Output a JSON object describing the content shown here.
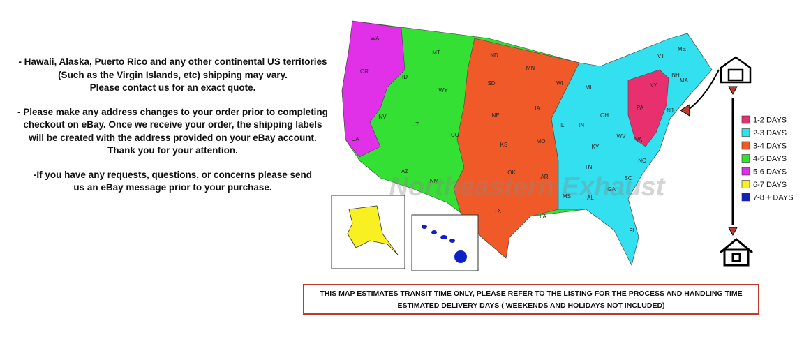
{
  "notes": [
    [
      "- Hawaii, Alaska, Puerto Rico and any other continental US territories",
      "(Such as the Virgin Islands, etc) shipping may vary.",
      "Please contact us for an exact quote."
    ],
    [
      "- Please make any address changes to your order prior to completing",
      "checkout on eBay. Once we receive your order, the shipping labels",
      "will be created with the address provided on your eBay account.",
      "Thank you for your attention."
    ],
    [
      "-If you have any requests, questions, or concerns please send",
      "us an eBay message prior to your purchase."
    ]
  ],
  "map": {
    "watermark": "Northeastern Exhaust",
    "states": [
      "WA",
      "OR",
      "CA",
      "MT",
      "ID",
      "WY",
      "NV",
      "UT",
      "CO",
      "AZ",
      "NM",
      "ND",
      "SD",
      "NE",
      "KS",
      "OK",
      "TX",
      "MN",
      "IA",
      "MO",
      "AR",
      "LA",
      "WI",
      "IL",
      "MI",
      "IN",
      "OH",
      "KY",
      "TN",
      "MS",
      "AL",
      "GA",
      "FL",
      "SC",
      "NC",
      "VA",
      "WV",
      "PA",
      "NY",
      "VT",
      "ME",
      "NH",
      "MA",
      "NJ"
    ],
    "insets": [
      "AK",
      "HI"
    ]
  },
  "legend": [
    {
      "label": "1-2 DAYS",
      "color": "#e8306e"
    },
    {
      "label": "2-3 DAYS",
      "color": "#33e0f0"
    },
    {
      "label": "3-4 DAYS",
      "color": "#f05a28"
    },
    {
      "label": "4-5 DAYS",
      "color": "#33e033"
    },
    {
      "label": "5-6 DAYS",
      "color": "#e030e8"
    },
    {
      "label": "6-7 DAYS",
      "color": "#f8f020"
    },
    {
      "label": "7-8 + DAYS",
      "color": "#1020c8"
    }
  ],
  "footer": [
    "THIS MAP ESTIMATES TRANSIT TIME ONLY, PLEASE REFER TO THE LISTING FOR THE PROCESS AND HANDLING TIME",
    "ESTIMATED DELIVERY DAYS ( WEEKENDS AND HOLIDAYS NOT INCLUDED)"
  ]
}
